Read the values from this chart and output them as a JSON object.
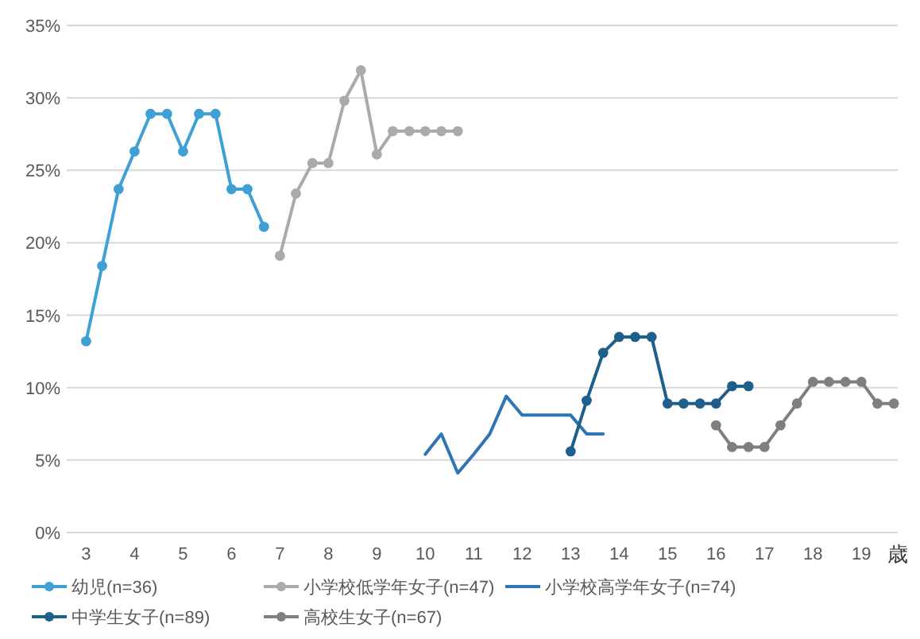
{
  "chart_data": {
    "type": "line",
    "xlabel": "歳",
    "xlim": [
      2.6,
      19.75
    ],
    "xticks": [
      3,
      4,
      5,
      6,
      7,
      8,
      9,
      10,
      11,
      12,
      13,
      14,
      15,
      16,
      17,
      18,
      19
    ],
    "ylim": [
      0,
      35
    ],
    "yticks": [
      {
        "value": 0,
        "label": "0%"
      },
      {
        "value": 5,
        "label": "5%"
      },
      {
        "value": 10,
        "label": "10%"
      },
      {
        "value": 15,
        "label": "15%"
      },
      {
        "value": 20,
        "label": "20%"
      },
      {
        "value": 25,
        "label": "25%"
      },
      {
        "value": 30,
        "label": "30%"
      },
      {
        "value": 35,
        "label": "35%"
      }
    ],
    "grid": "y",
    "legend": "bottom",
    "marker": "circle",
    "line_style": "solid",
    "series": [
      {
        "name": "幼児(n=36)",
        "color": "#3fa0d6",
        "x": [
          3,
          3.33,
          3.67,
          4,
          4.33,
          4.67,
          5,
          5.33,
          5.67,
          6,
          6.33,
          6.67
        ],
        "values": [
          13.2,
          18.4,
          23.7,
          26.3,
          28.9,
          28.9,
          26.3,
          28.9,
          28.9,
          23.7,
          23.7,
          21.1
        ]
      },
      {
        "name": "小学校低学年女子(n=47)",
        "color": "#aaaaaa",
        "x": [
          7,
          7.33,
          7.67,
          8,
          8.33,
          8.67,
          9,
          9.33,
          9.67,
          10,
          10.33,
          10.67
        ],
        "values": [
          19.1,
          23.4,
          25.5,
          25.5,
          29.8,
          31.9,
          26.1,
          27.7,
          27.7,
          27.7,
          27.7,
          27.7
        ]
      },
      {
        "name": "小学校高学年女子(n=74)",
        "color": "#2e75b6",
        "marker": "none",
        "x": [
          10,
          10.33,
          10.67,
          11,
          11.33,
          11.67,
          12,
          12.33,
          12.67,
          13,
          13.33,
          13.67
        ],
        "values": [
          5.4,
          6.8,
          4.1,
          5.4,
          6.8,
          9.4,
          8.1,
          8.1,
          8.1,
          8.1,
          6.8,
          6.8
        ]
      },
      {
        "name": "中学生女子(n=89)",
        "color": "#1f5f8b",
        "x": [
          13,
          13.33,
          13.67,
          14,
          14.33,
          14.67,
          15,
          15.33,
          15.67,
          16,
          16.33,
          16.67
        ],
        "values": [
          5.6,
          9.1,
          12.4,
          13.5,
          13.5,
          13.5,
          8.9,
          8.9,
          8.9,
          8.9,
          10.1,
          10.1
        ]
      },
      {
        "name": "高校生女子(n=67)",
        "color": "#7f7f7f",
        "x": [
          16,
          16.33,
          16.67,
          17,
          17.33,
          17.67,
          18,
          18.33,
          18.67,
          19,
          19.33,
          19.67
        ],
        "values": [
          7.4,
          5.9,
          5.9,
          5.9,
          7.4,
          8.9,
          10.4,
          10.4,
          10.4,
          10.4,
          8.9,
          8.9
        ]
      }
    ]
  }
}
